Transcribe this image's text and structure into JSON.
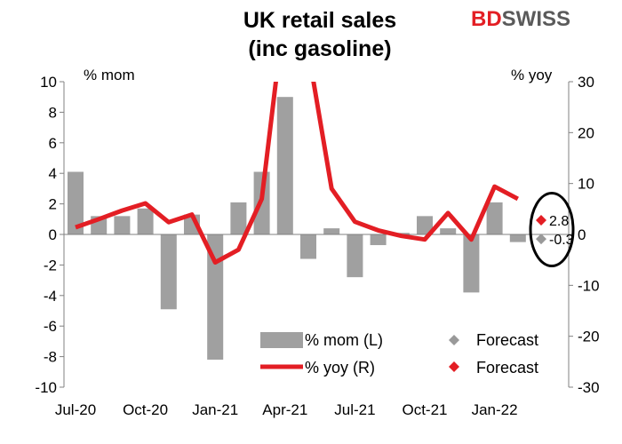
{
  "header": {
    "title_line1": "UK retail sales",
    "title_line2": "(inc gasoline)",
    "logo_part1": "BD",
    "logo_part2": "SWISS"
  },
  "chart_data": {
    "type": "bar",
    "title": "UK retail sales (inc gasoline)",
    "ylabel_left": "% mom",
    "ylabel_right": "% yoy",
    "ylim_left": [
      -10,
      10
    ],
    "ylim_right": [
      -30,
      30
    ],
    "yticks_left": [
      10,
      8,
      6,
      4,
      2,
      0,
      -2,
      -4,
      -6,
      -8,
      -10
    ],
    "yticks_right": [
      30,
      20,
      10,
      0,
      -10,
      -20,
      -30
    ],
    "x_tick_labels": [
      "Jul-20",
      "Oct-20",
      "Jan-21",
      "Apr-21",
      "Jul-21",
      "Oct-21",
      "Jan-22"
    ],
    "categories": [
      "Jul-20",
      "Aug-20",
      "Sep-20",
      "Oct-20",
      "Nov-20",
      "Dec-20",
      "Jan-21",
      "Feb-21",
      "Mar-21",
      "Apr-21",
      "May-21",
      "Jun-21",
      "Jul-21",
      "Aug-21",
      "Sep-21",
      "Oct-21",
      "Nov-21",
      "Dec-21",
      "Jan-22",
      "Feb-22",
      "Mar-22"
    ],
    "series": [
      {
        "name": "% mom (L)",
        "type": "bar",
        "axis": "left",
        "color": "#a0a0a0",
        "values": [
          4.1,
          1.2,
          1.2,
          1.7,
          -4.9,
          1.3,
          -8.2,
          2.1,
          4.1,
          9.0,
          -1.6,
          0.4,
          -2.8,
          -0.7,
          0.1,
          1.2,
          0.4,
          -3.8,
          2.1,
          -0.5,
          null
        ]
      },
      {
        "name": "% yoy (R)",
        "type": "line",
        "axis": "right",
        "color": "#e31e24",
        "values": [
          1.4,
          3.0,
          4.7,
          6.1,
          2.4,
          3.9,
          -5.5,
          -3.0,
          7.0,
          45.0,
          36.0,
          9.0,
          2.5,
          0.8,
          -0.3,
          -1.0,
          4.2,
          -1.0,
          9.4,
          7.0,
          null
        ]
      }
    ],
    "forecasts": [
      {
        "legend": "Forecast",
        "axis": "left",
        "category": "Mar-22",
        "value": -0.3,
        "label": "-0.3",
        "color": "#999999"
      },
      {
        "legend": "Forecast",
        "axis": "right",
        "category": "Mar-22",
        "value": 2.8,
        "label": "2.8",
        "color": "#e31e24"
      }
    ],
    "annotation": "circle around forecast values",
    "grid": false,
    "legend_position": "bottom-center"
  }
}
